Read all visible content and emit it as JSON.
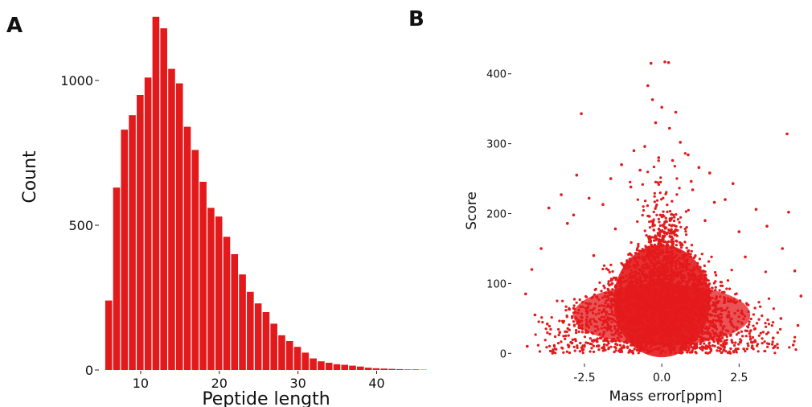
{
  "figure": {
    "panel_a_letter": "A",
    "panel_b_letter": "B",
    "bar_color": "#e31a1c",
    "point_color": "#e31a1c"
  },
  "chart_data": [
    {
      "type": "bar",
      "panel": "A",
      "xlabel": "Peptide length",
      "ylabel": "Count",
      "xlim": [
        5,
        47
      ],
      "ylim": [
        0,
        1250
      ],
      "x_ticks": [
        10,
        20,
        30,
        40
      ],
      "y_ticks": [
        0,
        500,
        1000
      ],
      "bin_width": 1,
      "x": [
        6,
        7,
        8,
        9,
        10,
        11,
        12,
        13,
        14,
        15,
        16,
        17,
        18,
        19,
        20,
        21,
        22,
        23,
        24,
        25,
        26,
        27,
        28,
        29,
        30,
        31,
        32,
        33,
        34,
        35,
        36,
        37,
        38,
        39,
        40,
        41,
        42,
        43,
        44,
        45,
        46
      ],
      "values": [
        240,
        630,
        830,
        880,
        950,
        1010,
        1220,
        1180,
        1040,
        990,
        840,
        760,
        650,
        560,
        530,
        460,
        400,
        330,
        270,
        230,
        200,
        160,
        120,
        100,
        80,
        60,
        40,
        30,
        25,
        20,
        18,
        15,
        12,
        8,
        6,
        5,
        4,
        3,
        2,
        2,
        1
      ],
      "grid": false
    },
    {
      "type": "scatter",
      "panel": "B",
      "xlabel": "Mass error[ppm]",
      "ylabel": "Score",
      "xlim": [
        -4.5,
        4.7
      ],
      "ylim": [
        -10,
        425
      ],
      "x_ticks": [
        -2.5,
        0.0,
        2.5
      ],
      "x_tick_labels": [
        "-2.5",
        "0.0",
        "2.5"
      ],
      "y_ticks": [
        0,
        100,
        200,
        300,
        400
      ],
      "grid": false,
      "points": [
        [
          -0.35,
          415
        ],
        [
          0.1,
          417
        ],
        [
          0.22,
          416
        ],
        [
          -0.45,
          383
        ],
        [
          -0.3,
          363
        ],
        [
          0.0,
          352
        ],
        [
          0.45,
          345
        ],
        [
          -2.6,
          343
        ],
        [
          -0.2,
          330
        ],
        [
          0.25,
          322
        ],
        [
          4.05,
          314
        ],
        [
          0.6,
          302
        ],
        [
          -0.55,
          296
        ],
        [
          -0.9,
          290
        ],
        [
          0.85,
          284
        ],
        [
          -0.1,
          280
        ],
        [
          0.35,
          276
        ],
        [
          -1.3,
          270
        ],
        [
          1.2,
          266
        ],
        [
          -0.7,
          262
        ],
        [
          1.55,
          258
        ],
        [
          -2.75,
          255
        ],
        [
          -1.65,
          250
        ],
        [
          0.95,
          246
        ],
        [
          2.3,
          243
        ],
        [
          -1.0,
          238
        ],
        [
          1.0,
          234
        ],
        [
          -3.25,
          227
        ],
        [
          -2.35,
          222
        ],
        [
          2.05,
          220
        ],
        [
          1.7,
          216
        ],
        [
          -1.9,
          213
        ],
        [
          -3.65,
          208
        ],
        [
          3.05,
          206
        ],
        [
          4.1,
          202
        ],
        [
          -2.85,
          198
        ],
        [
          -0.4,
          196
        ],
        [
          1.4,
          190
        ],
        [
          -3.05,
          186
        ],
        [
          3.4,
          182
        ],
        [
          -1.5,
          178
        ],
        [
          2.5,
          174
        ],
        [
          -3.9,
          150
        ],
        [
          3.9,
          150
        ],
        [
          -4.2,
          120
        ],
        [
          4.3,
          118
        ],
        [
          -2.2,
          140
        ],
        [
          2.7,
          138
        ],
        [
          -4.4,
          85
        ],
        [
          4.5,
          82
        ],
        [
          -3.7,
          42
        ],
        [
          -4.1,
          55
        ],
        [
          3.85,
          50
        ],
        [
          4.4,
          40
        ],
        [
          -3.3,
          30
        ],
        [
          3.6,
          22
        ],
        [
          -4.35,
          10
        ],
        [
          4.25,
          12
        ],
        [
          -2.9,
          15
        ],
        [
          2.9,
          16
        ]
      ]
    }
  ]
}
